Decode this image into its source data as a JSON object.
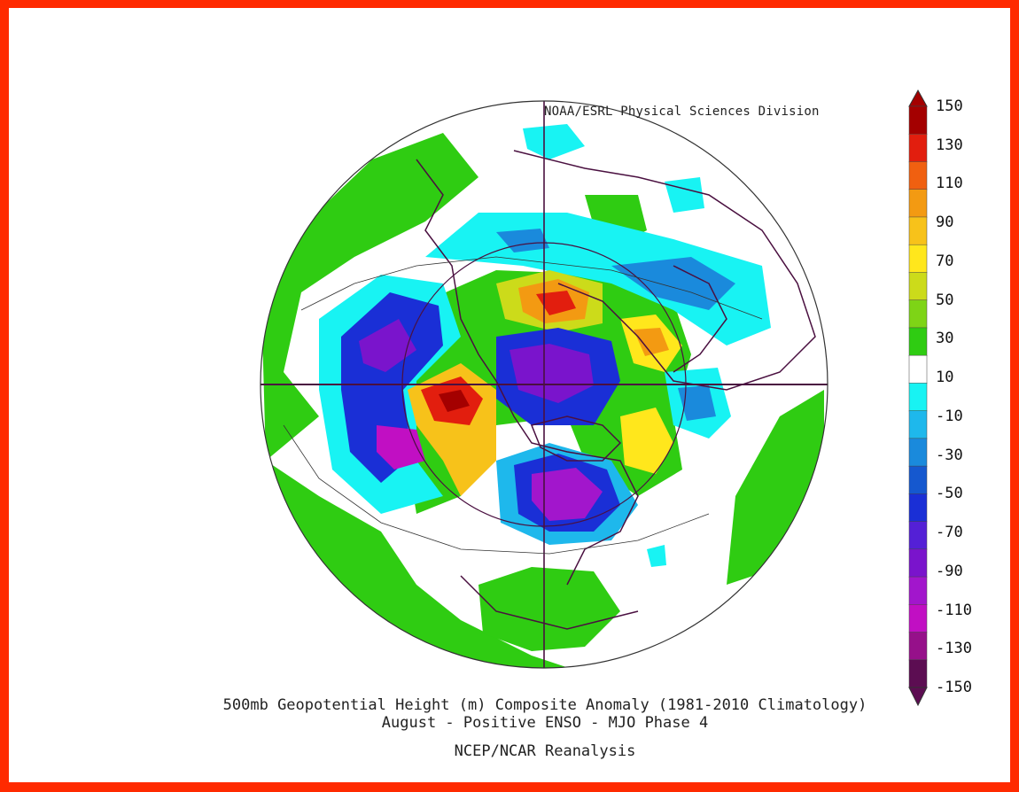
{
  "credit": "NOAA/ESRL Physical Sciences Division",
  "title_line1": "500mb Geopotential Height (m) Composite Anomaly (1981-2010 Climatology)",
  "title_line2": "August - Positive ENSO - MJO Phase 4",
  "source": "NCEP/NCAR Reanalysis",
  "colorbar": {
    "labels": [
      "150",
      "130",
      "110",
      "90",
      "70",
      "50",
      "30",
      "10",
      "-10",
      "-30",
      "-50",
      "-70",
      "-90",
      "-110",
      "-130",
      "-150"
    ],
    "colors": [
      "#a40000",
      "#e21e0e",
      "#f06010",
      "#f39a12",
      "#f7c21a",
      "#ffe71c",
      "#ccdb1a",
      "#7ed416",
      "#2fcc12",
      "#ffffff",
      "#18f3f3",
      "#1eb8ec",
      "#1a8adc",
      "#1558cf",
      "#1a2fd6",
      "#5420d6",
      "#7a14cc",
      "#a216cc",
      "#c10fc3",
      "#96108a",
      "#5c0d52"
    ]
  },
  "colors": {
    "frame": "#ff2a00",
    "coast": "#4a1040"
  }
}
